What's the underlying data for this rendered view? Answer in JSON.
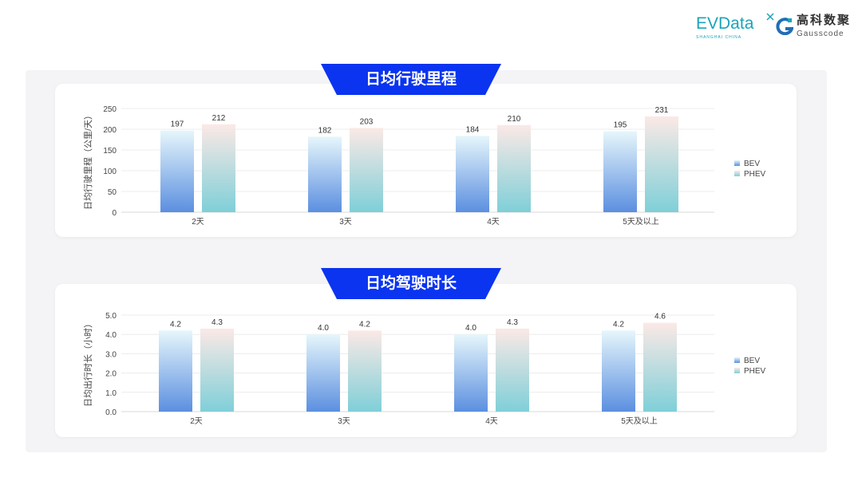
{
  "logos": {
    "evdata": "EVData",
    "evdata_sub": "SHANGHAI CHINA",
    "gauss_cn": "高科数聚",
    "gauss_en": "Gausscode"
  },
  "colors": {
    "banner": "#0a34f0",
    "bev_top": "#e6f6fb",
    "bev_bottom": "#5b8fe0",
    "phev_top": "#fbe9e6",
    "phev_bottom": "#7fcfd8",
    "panel": "#f4f4f6"
  },
  "chart_data": [
    {
      "type": "bar",
      "title": "日均行驶里程",
      "ylabel": "日均行驶里程（公里/天）",
      "xlabel": "",
      "categories": [
        "2天",
        "3天",
        "4天",
        "5天及以上"
      ],
      "ylim": [
        0,
        250
      ],
      "yticks": [
        "0",
        "50",
        "100",
        "150",
        "200",
        "250"
      ],
      "grid": true,
      "legend": "right",
      "series": [
        {
          "name": "BEV",
          "values": [
            197,
            182,
            184,
            195
          ],
          "labels": [
            "197",
            "182",
            "184",
            "195"
          ]
        },
        {
          "name": "PHEV",
          "values": [
            212,
            203,
            210,
            231
          ],
          "labels": [
            "212",
            "203",
            "210",
            "231"
          ]
        }
      ]
    },
    {
      "type": "bar",
      "title": "日均驾驶时长",
      "ylabel": "日均出行时长（小时）",
      "xlabel": "",
      "categories": [
        "2天",
        "3天",
        "4天",
        "5天及以上"
      ],
      "ylim": [
        0,
        5
      ],
      "yticks": [
        "0.0",
        "1.0",
        "2.0",
        "3.0",
        "4.0",
        "5.0"
      ],
      "grid": true,
      "legend": "right",
      "series": [
        {
          "name": "BEV",
          "values": [
            4.2,
            4.0,
            4.0,
            4.2
          ],
          "labels": [
            "4.2",
            "4.0",
            "4.0",
            "4.2"
          ]
        },
        {
          "name": "PHEV",
          "values": [
            4.3,
            4.2,
            4.3,
            4.6
          ],
          "labels": [
            "4.3",
            "4.2",
            "4.3",
            "4.6"
          ]
        }
      ]
    }
  ]
}
